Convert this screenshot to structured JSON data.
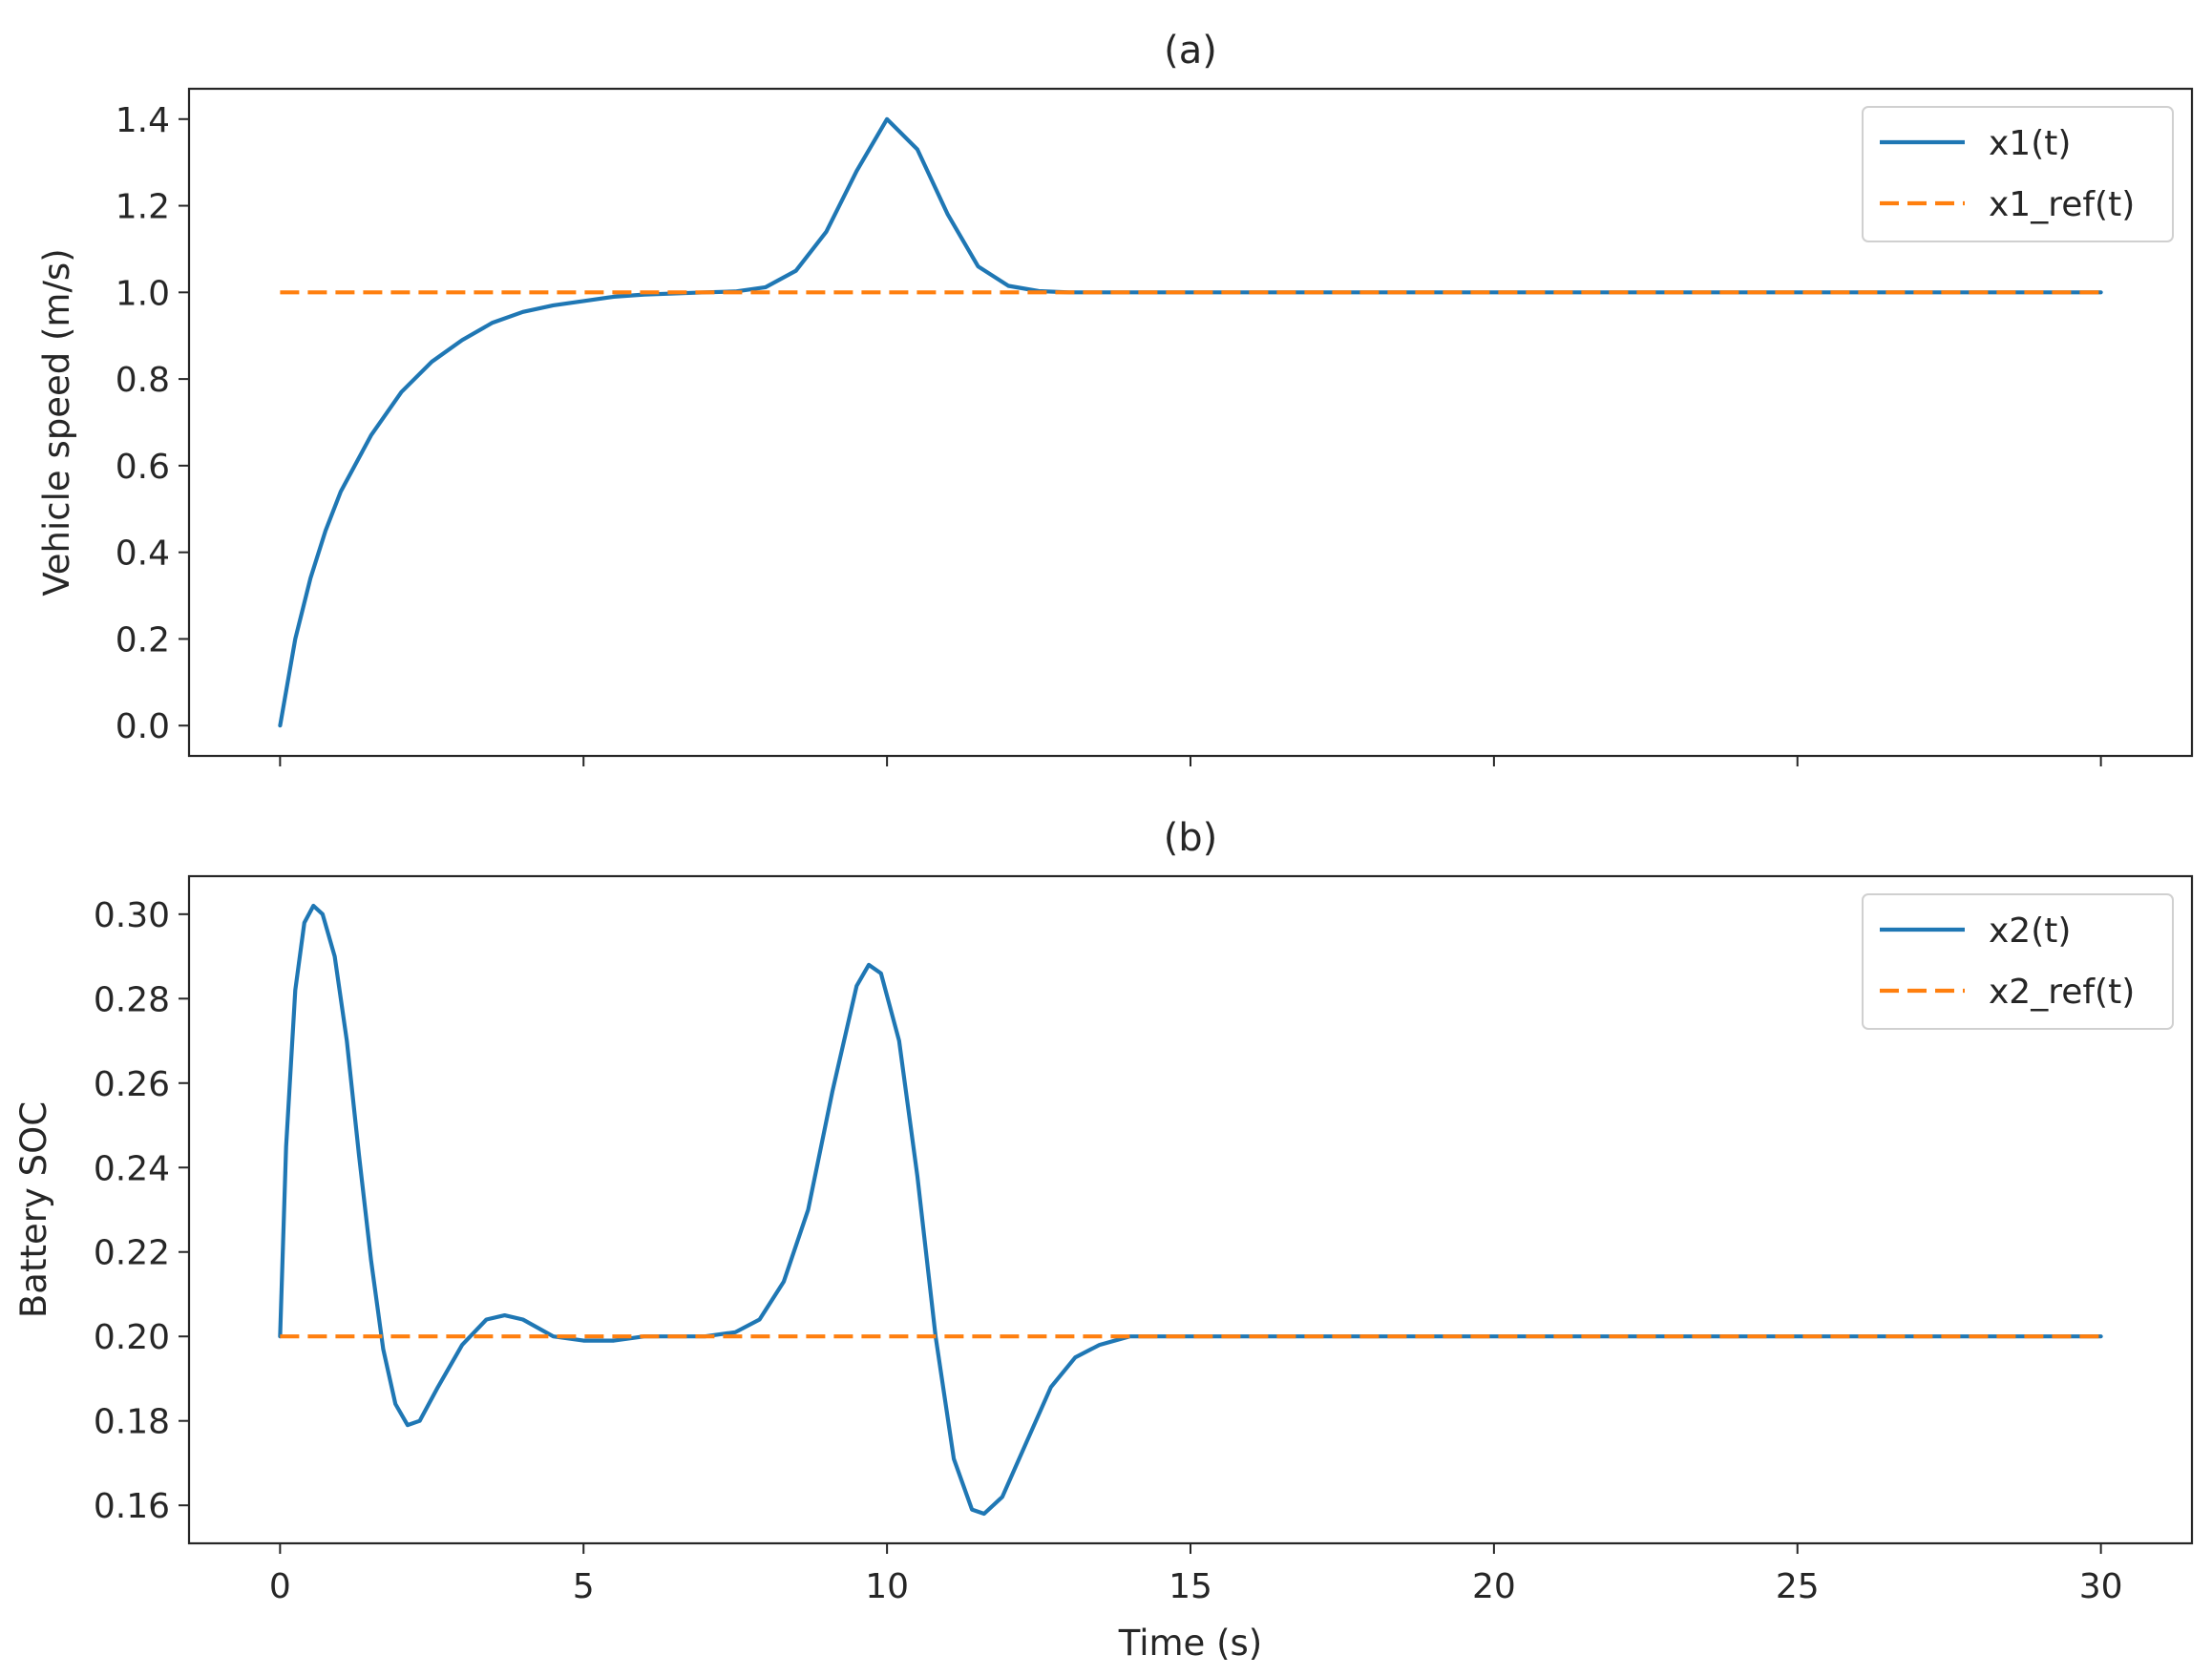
{
  "chart_data": [
    {
      "type": "line",
      "title": "(a)",
      "xlabel": "",
      "ylabel": "Vehicle speed (m/s)",
      "xlim": [
        -1.5,
        31.5
      ],
      "ylim": [
        -0.07,
        1.47
      ],
      "xticks": [
        0,
        5,
        10,
        15,
        20,
        25,
        30
      ],
      "xtick_labels": [],
      "yticks": [
        0.0,
        0.2,
        0.4,
        0.6,
        0.8,
        1.0,
        1.2,
        1.4
      ],
      "ytick_labels": [
        "0.0",
        "0.2",
        "0.4",
        "0.6",
        "0.8",
        "1.0",
        "1.2",
        "1.4"
      ],
      "legend": "top-right",
      "grid": false,
      "series": [
        {
          "name": "x1(t)",
          "style": "solid",
          "color": "#1f77b4",
          "points": [
            [
              0,
              0.0
            ],
            [
              0.25,
              0.2
            ],
            [
              0.5,
              0.34
            ],
            [
              0.75,
              0.45
            ],
            [
              1,
              0.54
            ],
            [
              1.5,
              0.67
            ],
            [
              2,
              0.77
            ],
            [
              2.5,
              0.84
            ],
            [
              3,
              0.89
            ],
            [
              3.5,
              0.93
            ],
            [
              4,
              0.955
            ],
            [
              4.5,
              0.97
            ],
            [
              5,
              0.98
            ],
            [
              5.5,
              0.99
            ],
            [
              6,
              0.995
            ],
            [
              7,
              1.0
            ],
            [
              7.5,
              1.002
            ],
            [
              8,
              1.012
            ],
            [
              8.5,
              1.05
            ],
            [
              9,
              1.14
            ],
            [
              9.5,
              1.28
            ],
            [
              10,
              1.4
            ],
            [
              10.5,
              1.33
            ],
            [
              11,
              1.18
            ],
            [
              11.5,
              1.06
            ],
            [
              12,
              1.015
            ],
            [
              12.5,
              1.003
            ],
            [
              13,
              1.0
            ],
            [
              15,
              1.0
            ],
            [
              20,
              1.0
            ],
            [
              25,
              1.0
            ],
            [
              30,
              1.0
            ]
          ]
        },
        {
          "name": "x1_ref(t)",
          "style": "dashed",
          "color": "#ff7f0e",
          "points": [
            [
              0,
              1.0
            ],
            [
              30,
              1.0
            ]
          ]
        }
      ]
    },
    {
      "type": "line",
      "title": "(b)",
      "xlabel": "Time (s)",
      "ylabel": "Battery SOC",
      "xlim": [
        -1.5,
        31.5
      ],
      "ylim": [
        0.151,
        0.309
      ],
      "xticks": [
        0,
        5,
        10,
        15,
        20,
        25,
        30
      ],
      "xtick_labels": [
        "0",
        "5",
        "10",
        "15",
        "20",
        "25",
        "30"
      ],
      "yticks": [
        0.16,
        0.18,
        0.2,
        0.22,
        0.24,
        0.26,
        0.28,
        0.3
      ],
      "ytick_labels": [
        "0.16",
        "0.18",
        "0.20",
        "0.22",
        "0.24",
        "0.26",
        "0.28",
        "0.30"
      ],
      "legend": "top-right",
      "grid": false,
      "series": [
        {
          "name": "x2(t)",
          "style": "solid",
          "color": "#1f77b4",
          "points": [
            [
              0,
              0.2
            ],
            [
              0.1,
              0.245
            ],
            [
              0.25,
              0.282
            ],
            [
              0.4,
              0.298
            ],
            [
              0.55,
              0.302
            ],
            [
              0.7,
              0.3
            ],
            [
              0.9,
              0.29
            ],
            [
              1.1,
              0.27
            ],
            [
              1.3,
              0.243
            ],
            [
              1.5,
              0.218
            ],
            [
              1.7,
              0.197
            ],
            [
              1.9,
              0.184
            ],
            [
              2.1,
              0.179
            ],
            [
              2.3,
              0.18
            ],
            [
              2.6,
              0.188
            ],
            [
              3,
              0.198
            ],
            [
              3.4,
              0.204
            ],
            [
              3.7,
              0.205
            ],
            [
              4,
              0.204
            ],
            [
              4.5,
              0.2
            ],
            [
              5,
              0.199
            ],
            [
              5.5,
              0.199
            ],
            [
              6,
              0.2
            ],
            [
              7,
              0.2
            ],
            [
              7.5,
              0.201
            ],
            [
              7.9,
              0.204
            ],
            [
              8.3,
              0.213
            ],
            [
              8.7,
              0.23
            ],
            [
              9.1,
              0.258
            ],
            [
              9.5,
              0.283
            ],
            [
              9.7,
              0.288
            ],
            [
              9.9,
              0.286
            ],
            [
              10.2,
              0.27
            ],
            [
              10.5,
              0.238
            ],
            [
              10.8,
              0.2
            ],
            [
              11.1,
              0.171
            ],
            [
              11.4,
              0.159
            ],
            [
              11.6,
              0.158
            ],
            [
              11.9,
              0.162
            ],
            [
              12.3,
              0.175
            ],
            [
              12.7,
              0.188
            ],
            [
              13.1,
              0.195
            ],
            [
              13.5,
              0.198
            ],
            [
              14,
              0.2
            ],
            [
              20,
              0.2
            ],
            [
              25,
              0.2
            ],
            [
              30,
              0.2
            ]
          ]
        },
        {
          "name": "x2_ref(t)",
          "style": "dashed",
          "color": "#ff7f0e",
          "points": [
            [
              0,
              0.2
            ],
            [
              30,
              0.2
            ]
          ]
        }
      ]
    }
  ]
}
